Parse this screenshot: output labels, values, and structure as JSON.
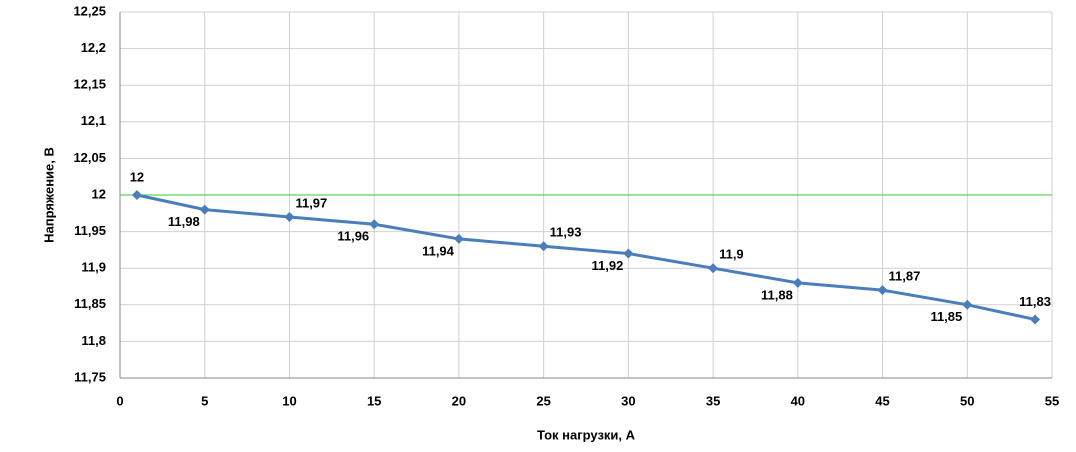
{
  "chart_data": {
    "type": "line",
    "x_label": "Ток нагрузки, А",
    "y_label": "Напряжение, В",
    "x": [
      1,
      5,
      10,
      15,
      20,
      25,
      30,
      35,
      40,
      45,
      50,
      54
    ],
    "series": [
      {
        "name": null,
        "color": "#4a7ebb",
        "values": [
          12,
          11.98,
          11.97,
          11.96,
          11.94,
          11.93,
          11.92,
          11.9,
          11.88,
          11.87,
          11.85,
          11.83
        ],
        "value_labels": [
          "12",
          "11,98",
          "11,97",
          "11,96",
          "11,94",
          "11,93",
          "11,92",
          "11,9",
          "11,88",
          "11,87",
          "11,85",
          "11,83"
        ]
      }
    ],
    "xlim": [
      0,
      55
    ],
    "xticks": [
      0,
      5,
      10,
      15,
      20,
      25,
      30,
      35,
      40,
      45,
      50,
      55
    ],
    "ylim": [
      11.75,
      12.25
    ],
    "yticks": [
      {
        "value": 11.75,
        "label": "11,75"
      },
      {
        "value": 11.8,
        "label": "11,8"
      },
      {
        "value": 11.85,
        "label": "11,85"
      },
      {
        "value": 11.9,
        "label": "11,9"
      },
      {
        "value": 11.95,
        "label": "11,95"
      },
      12,
      {
        "value": 12.05,
        "label": "12,05"
      },
      {
        "value": 12.1,
        "label": "12,1"
      },
      {
        "value": 12.15,
        "label": "12,15"
      },
      {
        "value": 12.2,
        "label": "12,2"
      },
      {
        "value": 12.25,
        "label": "12,25"
      }
    ],
    "grid": true,
    "reference_line": {
      "value": 12,
      "color": "#33cc33"
    }
  }
}
